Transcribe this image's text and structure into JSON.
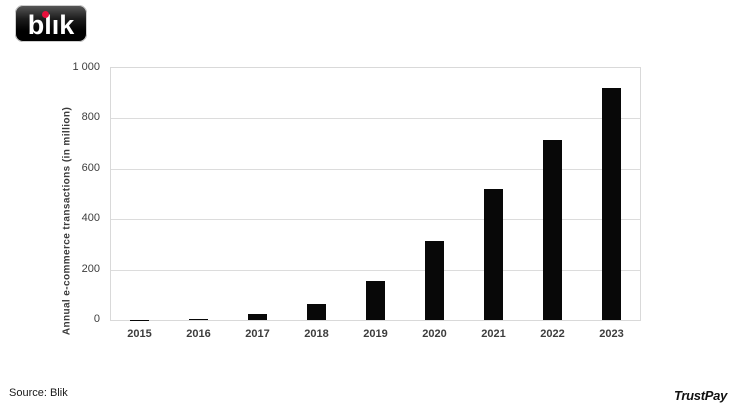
{
  "logo": {
    "text": "blık",
    "dot_color": "#e8103c"
  },
  "chart_data": {
    "type": "bar",
    "title": "",
    "categories": [
      "2015",
      "2016",
      "2017",
      "2018",
      "2019",
      "2020",
      "2021",
      "2022",
      "2023"
    ],
    "values": [
      1,
      6,
      22,
      65,
      155,
      313,
      520,
      713,
      920
    ],
    "xlabel": "",
    "ylabel": "Annual e-commerce transactions (in million)",
    "ylim": [
      0,
      1000
    ],
    "yticks": [
      0,
      200,
      400,
      600,
      800,
      1000
    ],
    "ytick_labels": [
      "0",
      "200",
      "400",
      "600",
      "800",
      "1 000"
    ],
    "grid": true,
    "legend": false,
    "bar_color": "#080808"
  },
  "footer": {
    "source": "Source: Blik",
    "brand": "TrustPay"
  }
}
